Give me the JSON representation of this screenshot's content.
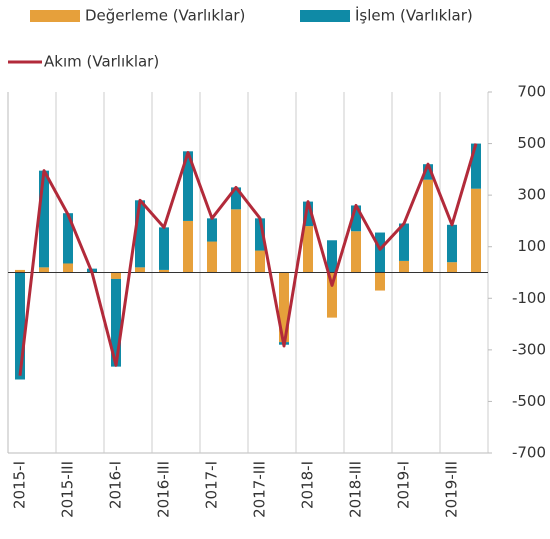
{
  "chart_data": {
    "type": "bar_line",
    "categories": [
      "2015-I",
      null,
      "2015-III",
      null,
      "2016-I",
      null,
      "2016-III",
      null,
      "2017-I",
      null,
      "2017-III",
      null,
      "2018-I",
      null,
      "2018-III",
      null,
      "2019-I",
      null,
      "2019-III",
      null
    ],
    "series": [
      {
        "name": "Değerleme (Varlıklar)",
        "color": "#e6a03b",
        "type": "bar",
        "values": [
          10,
          20,
          35,
          0,
          -25,
          20,
          10,
          200,
          120,
          245,
          85,
          -270,
          180,
          -175,
          160,
          -70,
          45,
          360,
          40,
          325
        ]
      },
      {
        "name": "İşlem (Varlıklar)",
        "color": "#0f8aa6",
        "type": "bar",
        "values": [
          -415,
          375,
          195,
          15,
          -340,
          260,
          165,
          270,
          90,
          85,
          125,
          -10,
          95,
          125,
          100,
          155,
          145,
          60,
          145,
          175
        ]
      },
      {
        "name": "Akım (Varlıklar)",
        "color": "#b22a3a",
        "type": "line",
        "values": [
          -400,
          395,
          225,
          0,
          -360,
          280,
          175,
          465,
          210,
          330,
          210,
          -285,
          275,
          -50,
          260,
          90,
          190,
          420,
          185,
          500
        ]
      }
    ],
    "ylim": [
      -700,
      700
    ],
    "yticks": [
      -700,
      -500,
      -300,
      -100,
      100,
      300,
      500,
      700
    ],
    "grid": true
  }
}
